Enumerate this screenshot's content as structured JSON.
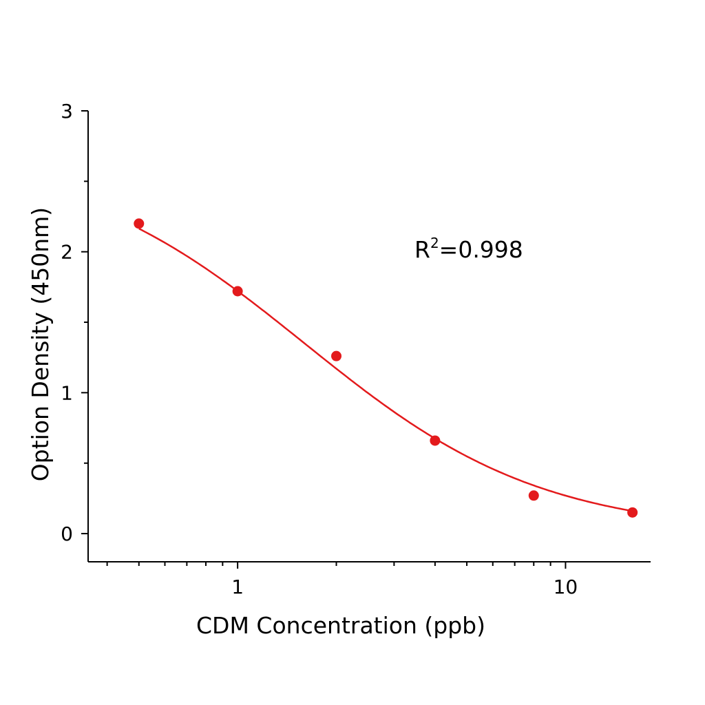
{
  "chart_data": {
    "type": "scatter",
    "title": "",
    "xlabel": "CDM Concentration (ppb)",
    "ylabel": "Option Density (450nm)",
    "xscale": "log",
    "xlim": [
      0.35,
      18
    ],
    "ylim": [
      -0.2,
      3
    ],
    "x_ticks": [
      {
        "value": 1,
        "label": "1"
      },
      {
        "value": 10,
        "label": "10"
      }
    ],
    "y_ticks": [
      {
        "value": 0,
        "label": "0"
      },
      {
        "value": 1,
        "label": "1"
      },
      {
        "value": 2,
        "label": "2"
      },
      {
        "value": 3,
        "label": "3"
      }
    ],
    "grid": false,
    "legend": "none",
    "series": [
      {
        "x": [
          0.5,
          1,
          2,
          4,
          8,
          16
        ],
        "y": [
          2.2,
          1.72,
          1.26,
          0.66,
          0.27,
          0.15
        ],
        "color": "#e31a1c",
        "fit_line": "four-parameter logistic"
      }
    ],
    "annotation": {
      "prefix": "R",
      "sup": "2",
      "suffix": "=0.998"
    }
  }
}
